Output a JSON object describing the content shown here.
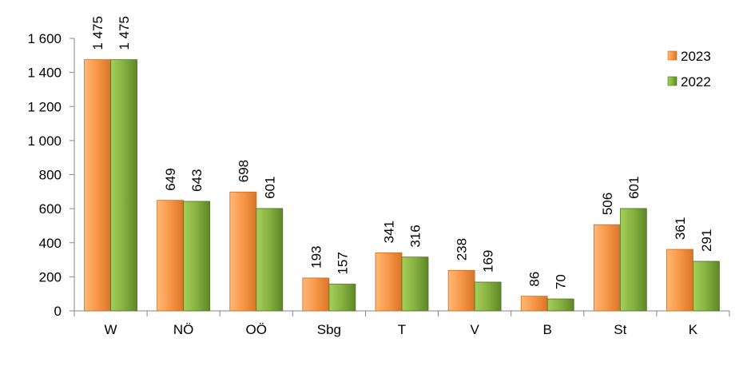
{
  "chart_data": {
    "type": "bar",
    "title": "",
    "xlabel": "",
    "ylabel": "",
    "categories": [
      "W",
      "NÖ",
      "OÖ",
      "Sbg",
      "T",
      "V",
      "B",
      "St",
      "K"
    ],
    "series": [
      {
        "name": "2023",
        "values": [
          1475,
          649,
          698,
          193,
          341,
          238,
          86,
          506,
          361
        ],
        "color": "#F79646"
      },
      {
        "name": "2022",
        "values": [
          1475,
          643,
          601,
          157,
          316,
          169,
          70,
          601,
          291
        ],
        "color": "#77A139"
      }
    ],
    "data_labels": [
      [
        "1 475",
        "649",
        "698",
        "193",
        "341",
        "238",
        "86",
        "506",
        "361"
      ],
      [
        "1 475",
        "643",
        "601",
        "157",
        "316",
        "169",
        "70",
        "601",
        "291"
      ]
    ],
    "ylim": [
      0,
      1600
    ],
    "yticks": [
      0,
      200,
      400,
      600,
      800,
      1000,
      1200,
      1400,
      1600
    ],
    "ytick_labels": [
      "0",
      "200",
      "400",
      "600",
      "800",
      "1 000",
      "1 200",
      "1 400",
      "1 600"
    ],
    "grid": false,
    "legend_position": "top-right"
  }
}
